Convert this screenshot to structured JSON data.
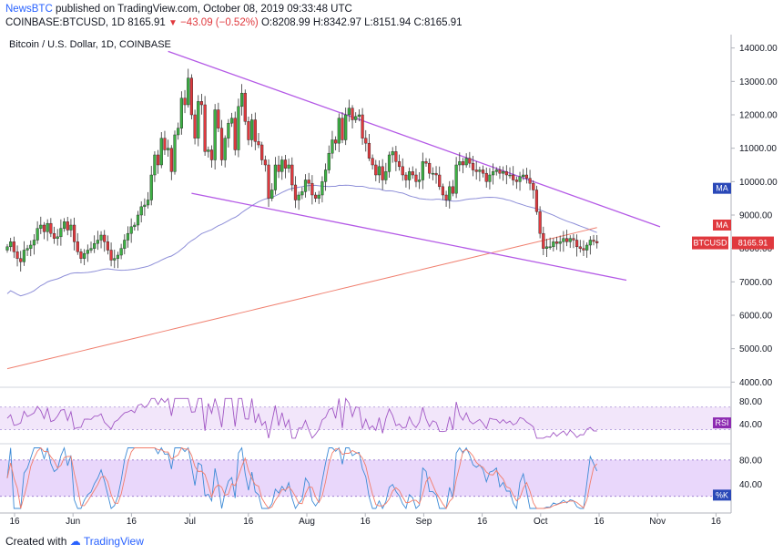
{
  "header": {
    "source": "NewsBTC",
    "published": "published on TradingView.com, October 08, 2019 09:33:48 UTC",
    "symbol": "COINBASE:BTCUSD, 1D",
    "last": "8165.91",
    "change": "−43.09 (−0.52%)",
    "ohlc": "O:8208.99 H:8342.97 L:8151.94 C:8165.91"
  },
  "footer": {
    "created_with": "Created with",
    "brand": "TradingView"
  },
  "colors": {
    "up": "#26a69a",
    "up_fill": "#3cb043",
    "down": "#e0393e",
    "ma_fast": "#8e8fd8",
    "ma_slow": "#f08070",
    "trendline": "#b45ae6",
    "rsi_line": "#a157c4",
    "rsi_band": "#f2e6fa",
    "stoch_k": "#3d8bd6",
    "stoch_d": "#f27d6b",
    "stoch_band": "#e9d7fb",
    "tag_ma": "#2a48b8",
    "tag_red": "#e0393e",
    "tag_rsi": "#8d2bb2"
  },
  "chart_data": {
    "type": "candlestick",
    "title": "Bitcoin / U.S. Dollar, 1D, COINBASE",
    "x_ticks": [
      "16",
      "Jun",
      "16",
      "Jul",
      "16",
      "Aug",
      "16",
      "Sep",
      "16",
      "Oct",
      "16",
      "Nov",
      "16"
    ],
    "y_ticks": [
      4000,
      5000,
      6000,
      7000,
      8000,
      9000,
      10000,
      11000,
      12000,
      13000,
      14000
    ],
    "ylim": [
      3900,
      14400
    ],
    "last_price_label": "BTCUSD",
    "last_price": "8165.91",
    "ma_labels": [
      "MA",
      "MA"
    ],
    "candles_close": [
      8050,
      8200,
      7900,
      7700,
      7600,
      7950,
      8000,
      8100,
      8250,
      8600,
      8700,
      8500,
      8750,
      8450,
      8300,
      8350,
      8600,
      8800,
      8550,
      8700,
      8200,
      7900,
      7700,
      7850,
      7950,
      8000,
      8150,
      8250,
      8400,
      8200,
      7950,
      7650,
      7700,
      7800,
      8000,
      8250,
      8450,
      8650,
      8700,
      9000,
      9250,
      9300,
      9450,
      10200,
      10800,
      10500,
      11300,
      10950,
      11000,
      10300,
      11400,
      11600,
      12500,
      12300,
      13100,
      12000,
      11300,
      12400,
      12300,
      10900,
      10950,
      10650,
      12150,
      11600,
      10650,
      11300,
      11750,
      11900,
      10950,
      12250,
      12650,
      11800,
      11250,
      11850,
      11200,
      11100,
      10650,
      10500,
      9500,
      9750,
      10500,
      10300,
      10650,
      10400,
      10500,
      9900,
      9450,
      9600,
      9700,
      10050,
      9950,
      9600,
      9500,
      9600,
      10000,
      10350,
      10850,
      11250,
      11150,
      11900,
      11250,
      12000,
      12200,
      11850,
      11950,
      12000,
      11300,
      11150,
      10700,
      10500,
      10200,
      10450,
      10050,
      10300,
      10800,
      10900,
      10600,
      10450,
      10200,
      10050,
      10300,
      10200,
      10000,
      10050,
      10600,
      10550,
      10250,
      10250,
      10200,
      9850,
      9600,
      9450,
      9850,
      9650,
      10500,
      10600,
      10500,
      10700,
      10550,
      10350,
      10300,
      10350,
      10250,
      10000,
      10200,
      10300,
      10350,
      10250,
      10300,
      10200,
      10200,
      10050,
      10000,
      10150,
      10200,
      10100,
      9950,
      9750,
      9100,
      8450,
      8000,
      8050,
      8050,
      8200,
      8150,
      8200,
      8300,
      8200,
      8300,
      8250,
      8050,
      8000,
      7950,
      8100,
      8250,
      8209,
      8166
    ],
    "rsi": {
      "label": "RSI",
      "ticks": [
        40,
        80
      ],
      "band": [
        30,
        70
      ]
    },
    "stoch": {
      "label": "%K",
      "ticks": [
        40,
        80
      ],
      "band": [
        20,
        80
      ]
    }
  }
}
